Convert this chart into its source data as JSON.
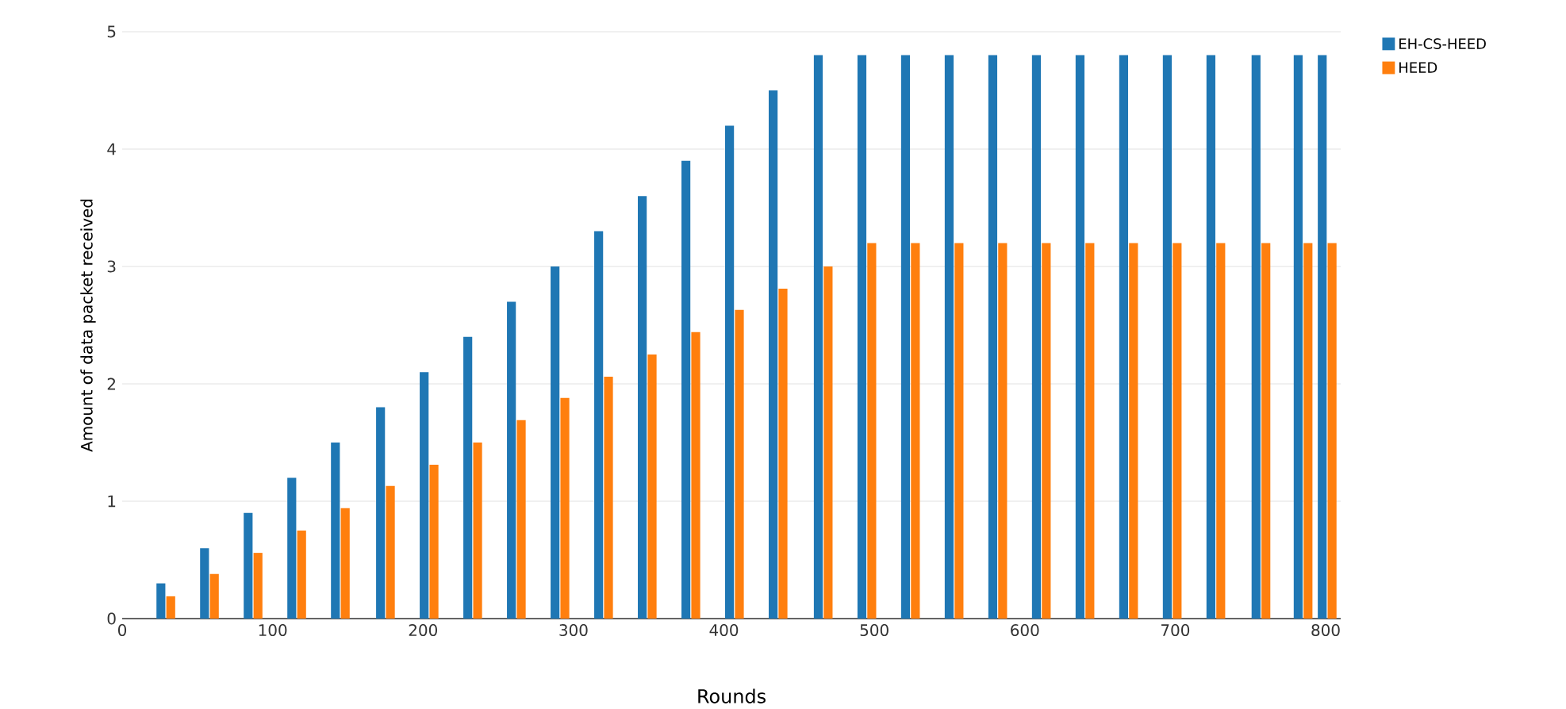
{
  "chart_data": {
    "type": "bar",
    "xlabel": "Rounds",
    "ylabel": "Amount of data packet received",
    "x": [
      29,
      58,
      87,
      116,
      145,
      175,
      204,
      233,
      262,
      291,
      320,
      349,
      378,
      407,
      436,
      466,
      495,
      524,
      553,
      582,
      611,
      640,
      669,
      698,
      727,
      757,
      785,
      801
    ],
    "series": [
      {
        "name": "EH-CS-HEED",
        "color": "#1f77b4",
        "values": [
          0.3,
          0.6,
          0.9,
          1.2,
          1.5,
          1.8,
          2.1,
          2.4,
          2.7,
          3.0,
          3.3,
          3.6,
          3.9,
          4.2,
          4.5,
          4.8,
          4.8,
          4.8,
          4.8,
          4.8,
          4.8,
          4.8,
          4.8,
          4.8,
          4.8,
          4.8,
          4.8,
          4.8
        ]
      },
      {
        "name": "HEED",
        "color": "#ff7f0e",
        "values": [
          0.19,
          0.38,
          0.56,
          0.75,
          0.94,
          1.13,
          1.31,
          1.5,
          1.69,
          1.88,
          2.06,
          2.25,
          2.44,
          2.63,
          2.81,
          3.0,
          3.2,
          3.2,
          3.2,
          3.2,
          3.2,
          3.2,
          3.2,
          3.2,
          3.2,
          3.2,
          3.2,
          3.2
        ]
      }
    ],
    "xlim": [
      0,
      810
    ],
    "ylim": [
      0,
      5
    ],
    "xticks": [
      0,
      100,
      200,
      300,
      400,
      500,
      600,
      700,
      800
    ],
    "yticks": [
      0,
      1,
      2,
      3,
      4,
      5
    ],
    "grid": "y",
    "legend": "top right"
  }
}
